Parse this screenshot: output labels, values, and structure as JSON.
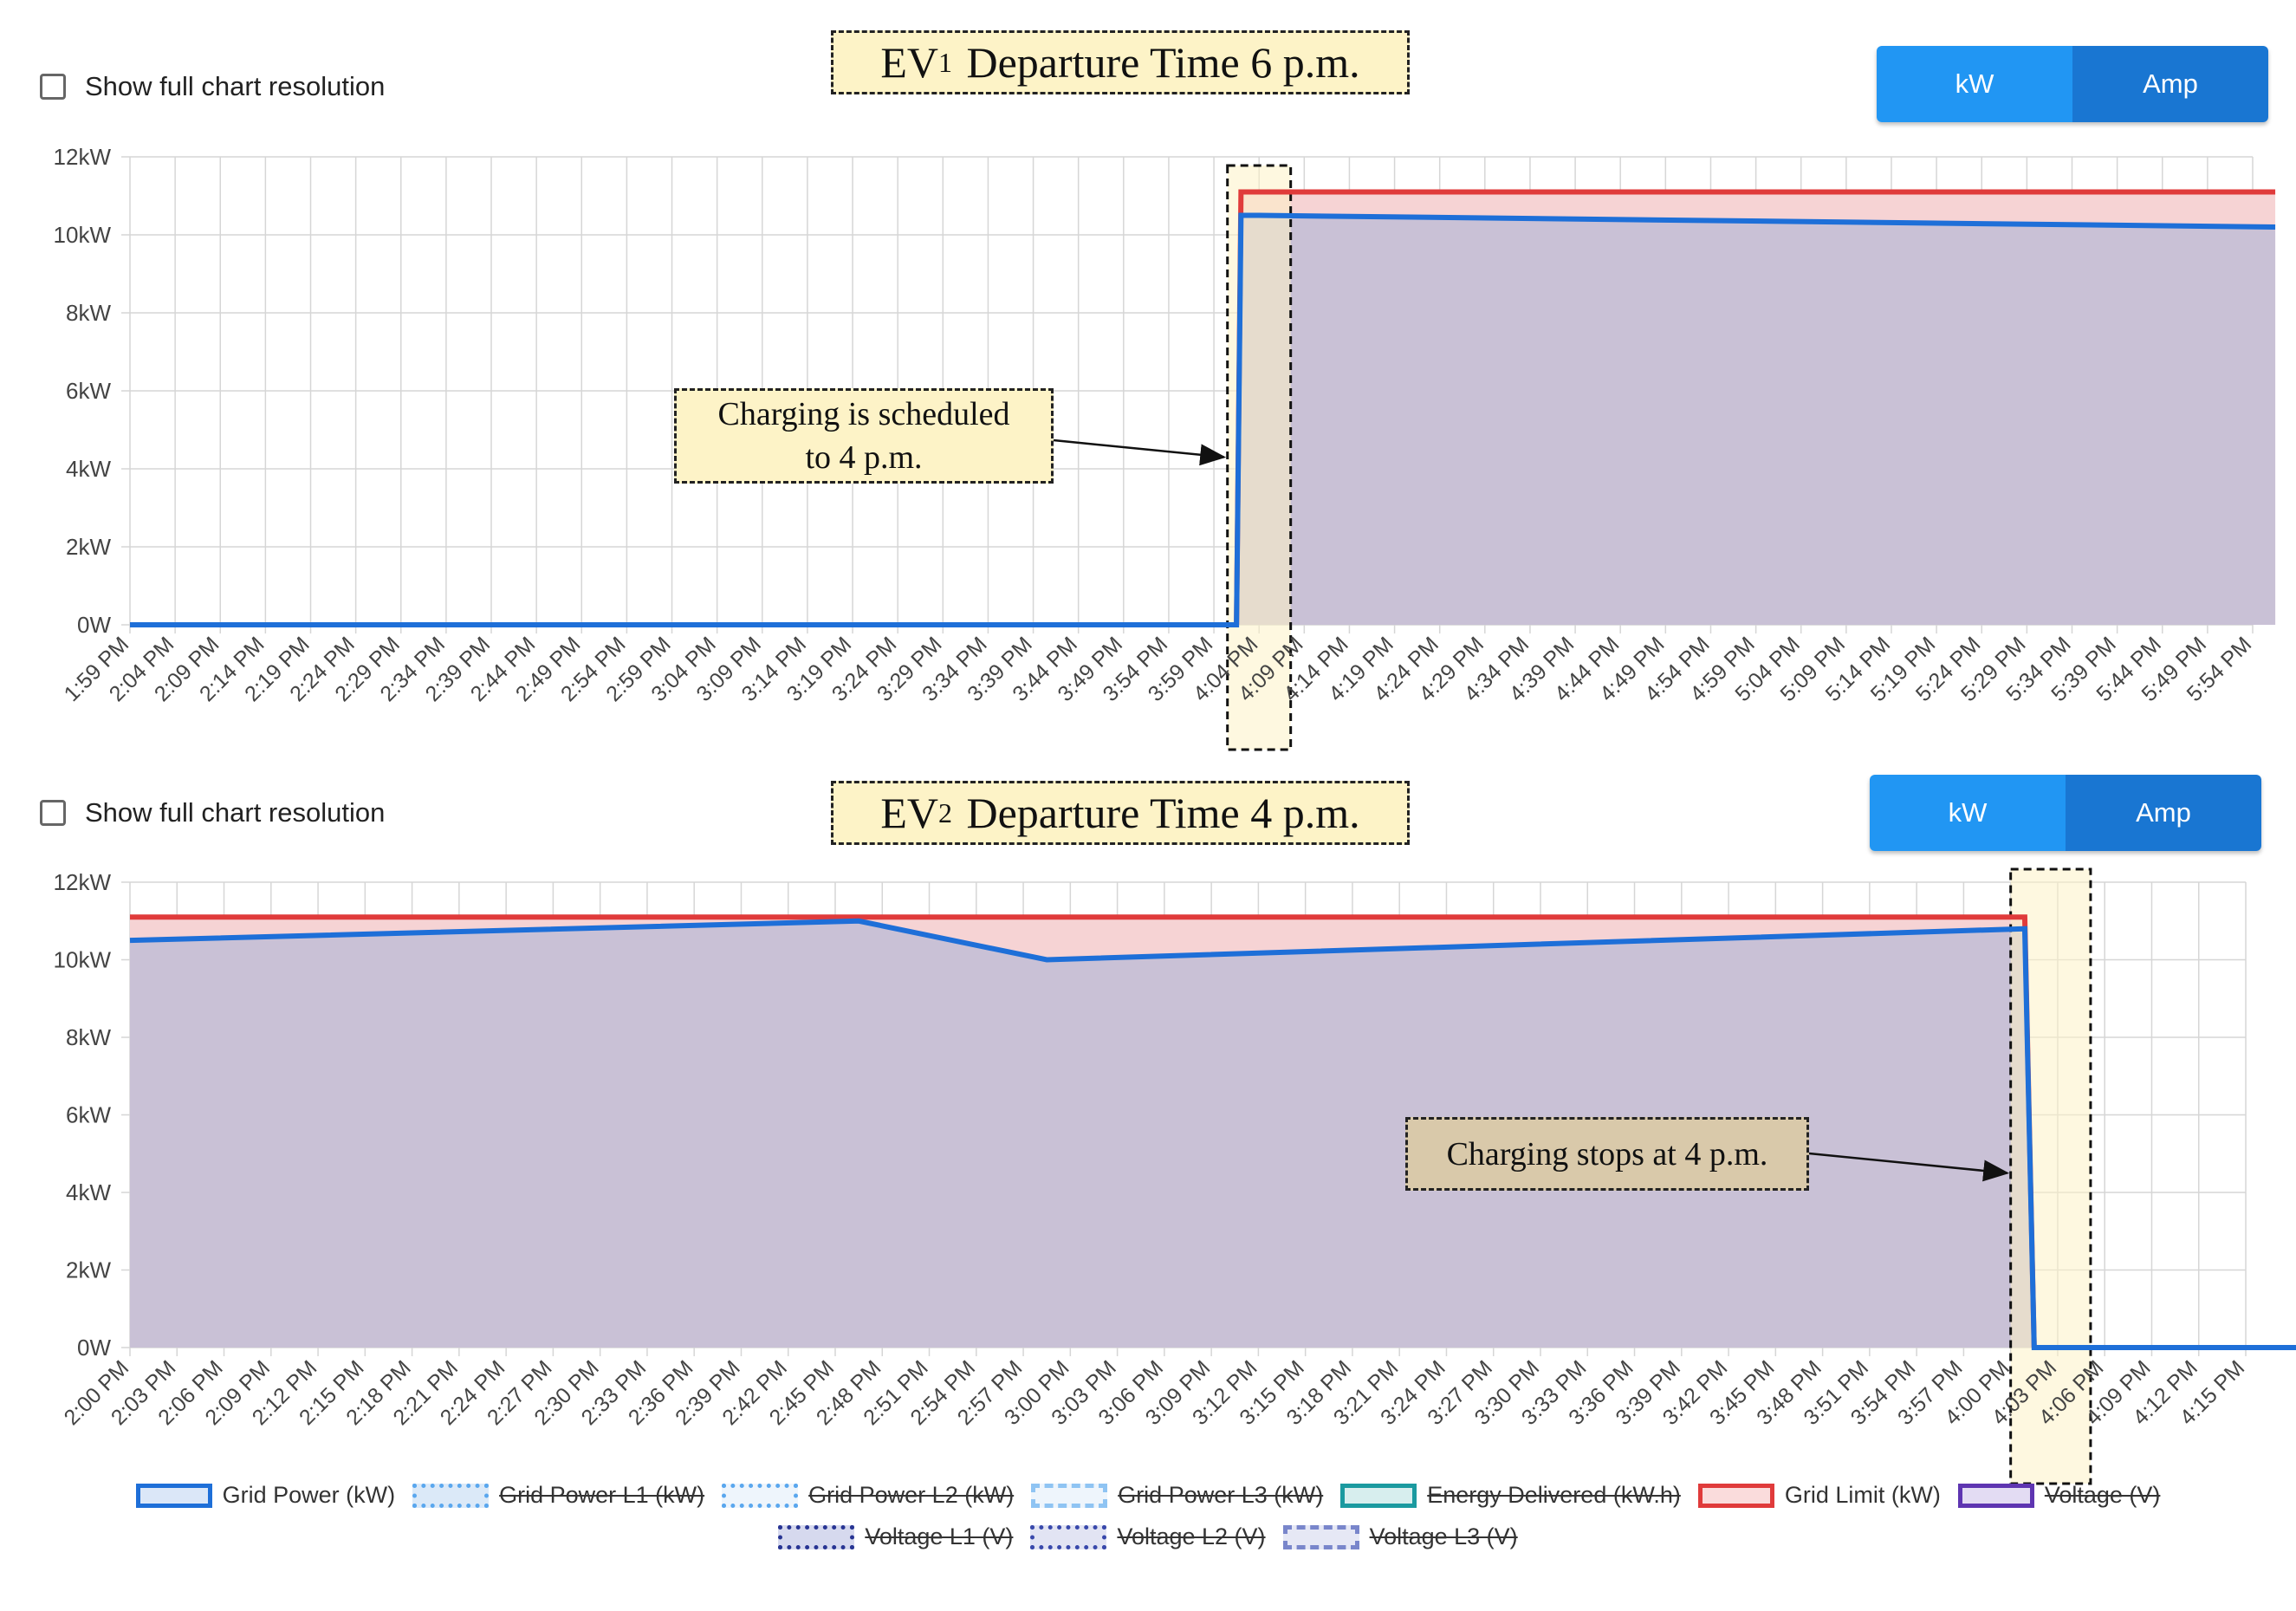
{
  "charts": [
    {
      "checkbox_label": "Show full chart resolution",
      "title_main": "EV",
      "title_sub": "1",
      "title_rest": " Departure Time 6 p.m.",
      "unit_buttons": [
        "kW",
        "Amp"
      ],
      "annotation": [
        "Charging is scheduled",
        "to 4 p.m."
      ]
    },
    {
      "checkbox_label": "Show full chart resolution",
      "title_main": "EV",
      "title_sub": "2",
      "title_rest": " Departure Time 4 p.m.",
      "unit_buttons": [
        "kW",
        "Amp"
      ],
      "annotation": [
        "Charging stops at 4 p.m."
      ]
    }
  ],
  "legend": [
    {
      "label": "Grid Power (kW)",
      "stroke": "#1e6fd8",
      "fill": "#dbe7f8",
      "style": "solid",
      "hidden": false
    },
    {
      "label": "Grid Power L1 (kW)",
      "stroke": "#5aa7ee",
      "fill": "#dbe9f8",
      "style": "dotted",
      "hidden": true
    },
    {
      "label": "Grid Power L2 (kW)",
      "stroke": "#5aa7ee",
      "fill": "#eef5fc",
      "style": "dotted",
      "hidden": true
    },
    {
      "label": "Grid Power L3 (kW)",
      "stroke": "#8fc4f3",
      "fill": "#eef5fc",
      "style": "dashed",
      "hidden": true
    },
    {
      "label": "Energy Delivered (kW.h)",
      "stroke": "#1b9aa0",
      "fill": "#d7eeee",
      "style": "solid",
      "hidden": true
    },
    {
      "label": "Grid Limit (kW)",
      "stroke": "#e03b3b",
      "fill": "#fadcdc",
      "style": "solid",
      "hidden": false
    },
    {
      "label": "Voltage (V)",
      "stroke": "#5e35b1",
      "fill": "#e3dcf3",
      "style": "solid",
      "hidden": true
    },
    {
      "label": "Voltage L1 (V)",
      "stroke": "#283593",
      "fill": "#d6d9ee",
      "style": "dotted",
      "hidden": true
    },
    {
      "label": "Voltage L2 (V)",
      "stroke": "#3949ab",
      "fill": "#e2e4f3",
      "style": "dotted",
      "hidden": true
    },
    {
      "label": "Voltage L3 (V)",
      "stroke": "#7986cb",
      "fill": "#e6e8f5",
      "style": "dashed",
      "hidden": true
    }
  ],
  "colors": {
    "grid_power": "#1e6fd8",
    "grid_limit": "#e03b3b",
    "limit_fill": "#f6d3d4",
    "power_fill": "#c9c1d6",
    "highlight": "#fdf3c7"
  },
  "chart_data": [
    {
      "type": "area",
      "ylim": [
        0,
        12
      ],
      "yticks": [
        "0W",
        "2kW",
        "4kW",
        "6kW",
        "8kW",
        "10kW",
        "12kW"
      ],
      "categories": [
        "1:59 PM",
        "2:04 PM",
        "2:09 PM",
        "2:14 PM",
        "2:19 PM",
        "2:24 PM",
        "2:29 PM",
        "2:34 PM",
        "2:39 PM",
        "2:44 PM",
        "2:49 PM",
        "2:54 PM",
        "2:59 PM",
        "3:04 PM",
        "3:09 PM",
        "3:14 PM",
        "3:19 PM",
        "3:24 PM",
        "3:29 PM",
        "3:34 PM",
        "3:39 PM",
        "3:44 PM",
        "3:49 PM",
        "3:54 PM",
        "3:59 PM",
        "4:04 PM",
        "4:09 PM",
        "4:14 PM",
        "4:19 PM",
        "4:24 PM",
        "4:29 PM",
        "4:34 PM",
        "4:39 PM",
        "4:44 PM",
        "4:49 PM",
        "4:54 PM",
        "4:59 PM",
        "5:04 PM",
        "5:09 PM",
        "5:14 PM",
        "5:19 PM",
        "5:24 PM",
        "5:29 PM",
        "5:34 PM",
        "5:39 PM",
        "5:44 PM",
        "5:49 PM",
        "5:54 PM"
      ],
      "series": [
        {
          "name": "Grid Power (kW)",
          "points": [
            [
              0,
              0
            ],
            [
              24.5,
              0
            ],
            [
              24.6,
              10.5
            ],
            [
              25,
              10.5
            ],
            [
              47.5,
              10.2
            ]
          ]
        },
        {
          "name": "Grid Limit (kW)",
          "points": [
            [
              24.5,
              0
            ],
            [
              24.6,
              11.1
            ],
            [
              47.5,
              11.1
            ]
          ]
        }
      ],
      "highlight_range": [
        24.3,
        25.7
      ],
      "annotation_target": [
        24.3,
        4.3
      ]
    },
    {
      "type": "area",
      "ylim": [
        0,
        12
      ],
      "yticks": [
        "0W",
        "2kW",
        "4kW",
        "6kW",
        "8kW",
        "10kW",
        "12kW"
      ],
      "categories": [
        "2:00 PM",
        "2:03 PM",
        "2:06 PM",
        "2:09 PM",
        "2:12 PM",
        "2:15 PM",
        "2:18 PM",
        "2:21 PM",
        "2:24 PM",
        "2:27 PM",
        "2:30 PM",
        "2:33 PM",
        "2:36 PM",
        "2:39 PM",
        "2:42 PM",
        "2:45 PM",
        "2:48 PM",
        "2:51 PM",
        "2:54 PM",
        "2:57 PM",
        "3:00 PM",
        "3:03 PM",
        "3:06 PM",
        "3:09 PM",
        "3:12 PM",
        "3:15 PM",
        "3:18 PM",
        "3:21 PM",
        "3:24 PM",
        "3:27 PM",
        "3:30 PM",
        "3:33 PM",
        "3:36 PM",
        "3:39 PM",
        "3:42 PM",
        "3:45 PM",
        "3:48 PM",
        "3:51 PM",
        "3:54 PM",
        "3:57 PM",
        "4:00 PM",
        "4:03 PM",
        "4:06 PM",
        "4:09 PM",
        "4:12 PM",
        "4:15 PM"
      ],
      "series": [
        {
          "name": "Grid Power (kW)",
          "points": [
            [
              0,
              10.5
            ],
            [
              15.5,
              11.0
            ],
            [
              19.5,
              10.0
            ],
            [
              40.3,
              10.8
            ],
            [
              40.5,
              0
            ],
            [
              46.5,
              0
            ]
          ]
        },
        {
          "name": "Grid Limit (kW)",
          "points": [
            [
              0,
              11.1
            ],
            [
              40.3,
              11.1
            ],
            [
              40.5,
              0
            ]
          ]
        }
      ],
      "highlight_range": [
        40.0,
        41.7
      ],
      "annotation_target": [
        40.0,
        4.5
      ]
    }
  ]
}
